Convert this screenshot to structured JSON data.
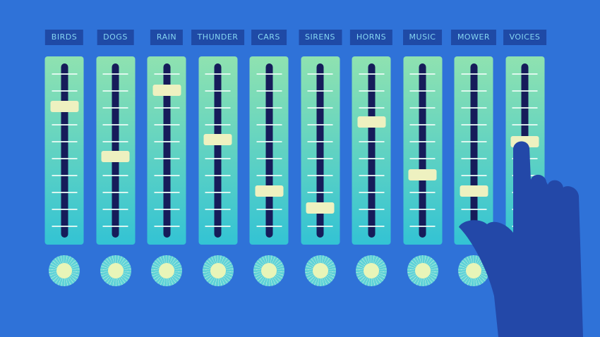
{
  "channels": [
    {
      "label": "BIRDS",
      "level": 0.76
    },
    {
      "label": "DOGS",
      "level": 0.46
    },
    {
      "label": "RAIN",
      "level": 0.86
    },
    {
      "label": "THUNDER",
      "level": 0.56
    },
    {
      "label": "CARS",
      "level": 0.25
    },
    {
      "label": "SIRENS",
      "level": 0.15
    },
    {
      "label": "HORNS",
      "level": 0.67
    },
    {
      "label": "MUSIC",
      "level": 0.35
    },
    {
      "label": "MOWER",
      "level": 0.25
    },
    {
      "label": "VOICES",
      "level": 0.55
    }
  ],
  "colors": {
    "background": "#2f72d8",
    "panel_top": "#8fe2b0",
    "panel_bottom": "#33c3d4",
    "handle": "#eef1c0",
    "hand": "#2348a8"
  },
  "icons": [
    "pointing-hand-icon"
  ]
}
